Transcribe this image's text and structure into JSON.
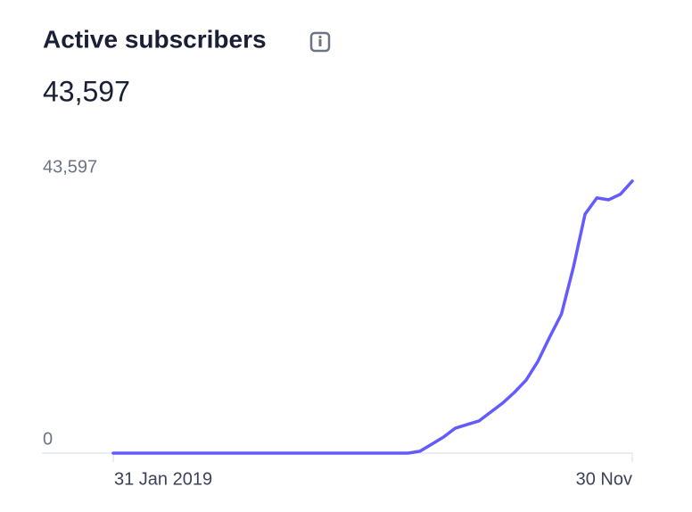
{
  "chart_data": {
    "type": "line",
    "title": "Active subscribers",
    "headline": {
      "value": 43597,
      "label": "43,597"
    },
    "categories": [
      "31 Jan 2019",
      null,
      null,
      null,
      null,
      null,
      null,
      null,
      null,
      null,
      null,
      null,
      null,
      null,
      null,
      null,
      null,
      null,
      null,
      null,
      null,
      null,
      null,
      null,
      null,
      null,
      null,
      null,
      null,
      null,
      null,
      null,
      null,
      null,
      null,
      null,
      null,
      null,
      null,
      null,
      null,
      null,
      null,
      null,
      "30 Nov"
    ],
    "series": [
      {
        "name": "Active subscribers",
        "color": "#635bff",
        "values": [
          0,
          0,
          0,
          0,
          0,
          0,
          0,
          0,
          0,
          0,
          0,
          0,
          0,
          0,
          0,
          0,
          0,
          0,
          0,
          0,
          0,
          0,
          0,
          0,
          0,
          0,
          300,
          1430,
          2570,
          4000,
          4580,
          5150,
          6580,
          8000,
          9720,
          11700,
          14700,
          18600,
          22300,
          29700,
          38300,
          40900,
          40600,
          41500,
          43597
        ]
      }
    ],
    "ylim": [
      0,
      43597
    ],
    "yticks": [
      0,
      {
        "value": 43597,
        "label": "43,597"
      }
    ]
  }
}
